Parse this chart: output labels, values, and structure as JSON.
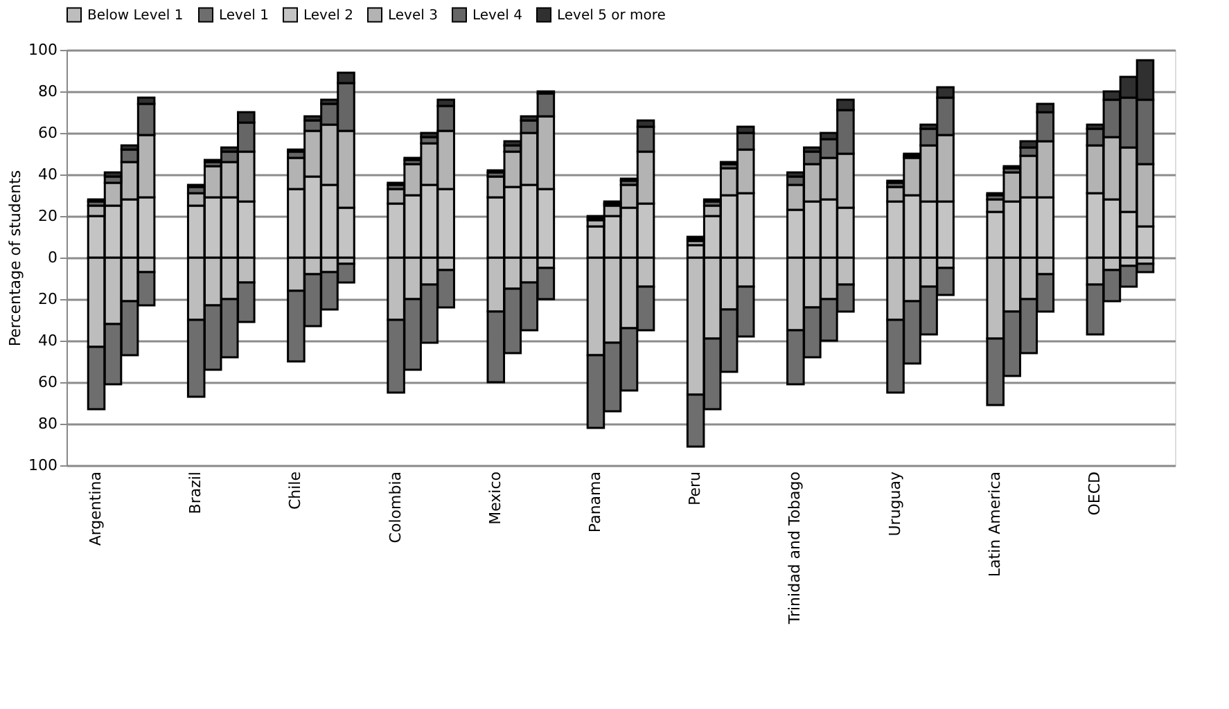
{
  "chart_data": {
    "type": "bar",
    "stacked": true,
    "ylabel": "Percentage of students",
    "categories": [
      null,
      "Argentina",
      null,
      null,
      null,
      null,
      null,
      "Brazil",
      null,
      null,
      null,
      null,
      null,
      "Chile",
      null,
      null,
      null,
      null,
      null,
      "Colombia",
      null,
      null,
      null,
      null,
      null,
      "Mexico",
      null,
      null,
      null,
      null,
      null,
      "Panama",
      null,
      null,
      null,
      null,
      null,
      "Peru",
      null,
      null,
      null,
      null,
      null,
      "Trinidad and Tobago",
      null,
      null,
      null,
      null,
      null,
      "Uruguay",
      null,
      null,
      null,
      null,
      null,
      "Latin America",
      null,
      null,
      null,
      null,
      null,
      "OECD",
      null,
      null,
      null,
      null
    ],
    "series": [
      {
        "name": "Below Level 1",
        "color": "#bdbdbd",
        "values": [
          null,
          -43,
          -32,
          -21,
          -7,
          null,
          null,
          -30,
          -23,
          -20,
          -12,
          null,
          null,
          -16,
          -8,
          -7,
          -3,
          null,
          null,
          -30,
          -20,
          -13,
          -6,
          null,
          null,
          -26,
          -15,
          -12,
          -5,
          null,
          null,
          -47,
          -41,
          -34,
          -14,
          null,
          null,
          -66,
          -39,
          -25,
          -14,
          null,
          null,
          -35,
          -24,
          -20,
          -13,
          null,
          null,
          -30,
          -21,
          -14,
          -5,
          null,
          null,
          -39,
          -26,
          -20,
          -8,
          null,
          null,
          -13,
          -6,
          -4,
          -3,
          null
        ]
      },
      {
        "name": "Level 1",
        "color": "#6e6e6e",
        "values": [
          null,
          -30,
          -29,
          -26,
          -16,
          null,
          null,
          -37,
          -31,
          -28,
          -19,
          null,
          null,
          -34,
          -25,
          -18,
          -9,
          null,
          null,
          -35,
          -34,
          -28,
          -18,
          null,
          null,
          -34,
          -31,
          -23,
          -15,
          null,
          null,
          -35,
          -33,
          -30,
          -21,
          null,
          null,
          -25,
          -34,
          -30,
          -24,
          null,
          null,
          -26,
          -24,
          -20,
          -13,
          null,
          null,
          -35,
          -30,
          -23,
          -13,
          null,
          null,
          -32,
          -31,
          -26,
          -18,
          null,
          null,
          -24,
          -15,
          -10,
          -4,
          null
        ]
      },
      {
        "name": "Level 2",
        "color": "#c4c4c4",
        "values": [
          null,
          20,
          25,
          28,
          29,
          null,
          null,
          25,
          29,
          29,
          27,
          null,
          null,
          33,
          39,
          35,
          24,
          null,
          null,
          26,
          30,
          35,
          33,
          null,
          null,
          29,
          34,
          35,
          33,
          null,
          null,
          15,
          20,
          24,
          26,
          null,
          null,
          6,
          20,
          30,
          31,
          null,
          null,
          23,
          27,
          28,
          24,
          null,
          null,
          27,
          30,
          27,
          27,
          null,
          null,
          22,
          27,
          29,
          29,
          null,
          null,
          31,
          28,
          22,
          15,
          null
        ]
      },
      {
        "name": "Level 3",
        "color": "#b3b3b3",
        "values": [
          null,
          5,
          11,
          18,
          30,
          null,
          null,
          6,
          15,
          17,
          24,
          null,
          null,
          15,
          22,
          29,
          37,
          null,
          null,
          7,
          15,
          20,
          28,
          null,
          null,
          10,
          17,
          25,
          35,
          null,
          null,
          3,
          5,
          11,
          25,
          null,
          null,
          2,
          5,
          13,
          21,
          null,
          null,
          12,
          18,
          20,
          26,
          null,
          null,
          7,
          18,
          27,
          32,
          null,
          null,
          6,
          14,
          20,
          27,
          null,
          null,
          23,
          30,
          31,
          30,
          null
        ]
      },
      {
        "name": "Level 4",
        "color": "#666666",
        "values": [
          null,
          2,
          3,
          6,
          15,
          null,
          null,
          3,
          2,
          5,
          14,
          null,
          null,
          3,
          5,
          10,
          23,
          null,
          null,
          2,
          2,
          3,
          12,
          null,
          null,
          2,
          3,
          6,
          11,
          null,
          null,
          1,
          1,
          2,
          12,
          null,
          null,
          1,
          2,
          2,
          8,
          null,
          null,
          4,
          6,
          9,
          21,
          null,
          null,
          2,
          1,
          8,
          18,
          null,
          null,
          2,
          2,
          4,
          14,
          null,
          null,
          8,
          18,
          24,
          31,
          null
        ]
      },
      {
        "name": "Level 5 or more",
        "color": "#303030",
        "values": [
          null,
          1,
          2,
          2,
          3,
          null,
          null,
          1,
          1,
          2,
          5,
          null,
          null,
          1,
          2,
          2,
          5,
          null,
          null,
          1,
          1,
          2,
          3,
          null,
          null,
          1,
          2,
          2,
          1,
          null,
          null,
          1,
          1,
          1,
          3,
          null,
          null,
          1,
          1,
          1,
          3,
          null,
          null,
          2,
          2,
          3,
          5,
          null,
          null,
          1,
          1,
          2,
          5,
          null,
          null,
          1,
          1,
          3,
          4,
          null,
          null,
          2,
          4,
          10,
          19,
          null
        ]
      }
    ],
    "ylim": [
      -100,
      100
    ],
    "yticks": [
      {
        "value": -100,
        "label": "100"
      },
      {
        "value": -80,
        "label": "80"
      },
      {
        "value": -60,
        "label": "60"
      },
      {
        "value": -40,
        "label": "40"
      },
      {
        "value": -20,
        "label": "20"
      },
      0,
      20,
      40,
      60,
      80,
      100
    ],
    "grid": "y",
    "legend": "top"
  }
}
